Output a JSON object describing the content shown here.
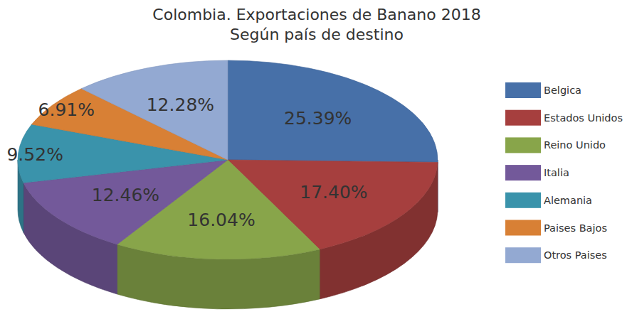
{
  "chart_data": {
    "type": "pie",
    "title": "Colombia. Exportaciones de Banano 2018",
    "subtitle": "Según país de destino",
    "categories": [
      "Belgica",
      "Estados Unidos",
      "Reino Unido",
      "Italia",
      "Alemania",
      "Paises Bajos",
      "Otros Paises"
    ],
    "values": [
      25.39,
      17.4,
      16.04,
      12.46,
      9.52,
      6.91,
      12.28
    ],
    "value_labels": [
      "25.39%",
      "17.40%",
      "16.04%",
      "12.46%",
      "9.52%",
      "6.91%",
      "12.28%"
    ],
    "colors": [
      "#4770a8",
      "#a63f3e",
      "#88a54a",
      "#73599a",
      "#3a93ab",
      "#d88035",
      "#93a9d2"
    ],
    "data_labels": true,
    "legend": "right"
  }
}
